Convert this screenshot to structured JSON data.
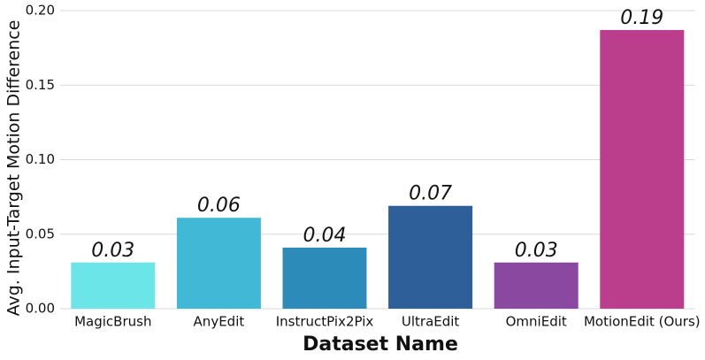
{
  "chart_data": {
    "type": "bar",
    "x_label": "Dataset Name",
    "y_label": "Avg. Input-Target Motion Difference",
    "categories": [
      "MagicBrush",
      "AnyEdit",
      "InstructPix2Pix",
      "UltraEdit",
      "OmniEdit",
      "MotionEdit (Ours)"
    ],
    "values": [
      0.031,
      0.061,
      0.041,
      0.069,
      0.031,
      0.187
    ],
    "value_labels": [
      "0.03",
      "0.06",
      "0.04",
      "0.07",
      "0.03",
      "0.19"
    ],
    "colors": [
      "#6ce5e8",
      "#41b8d5",
      "#2d8bba",
      "#2f5f98",
      "#8a48a0",
      "#bb3e8c"
    ],
    "ylim": [
      0,
      0.2
    ],
    "yticks": [
      {
        "value": 0,
        "label": "0.00"
      },
      {
        "value": 0.05,
        "label": "0.05"
      },
      {
        "value": 0.1,
        "label": "0.10"
      },
      {
        "value": 0.15,
        "label": "0.15"
      },
      {
        "value": 0.2,
        "label": "0.20"
      }
    ],
    "grid": true
  }
}
